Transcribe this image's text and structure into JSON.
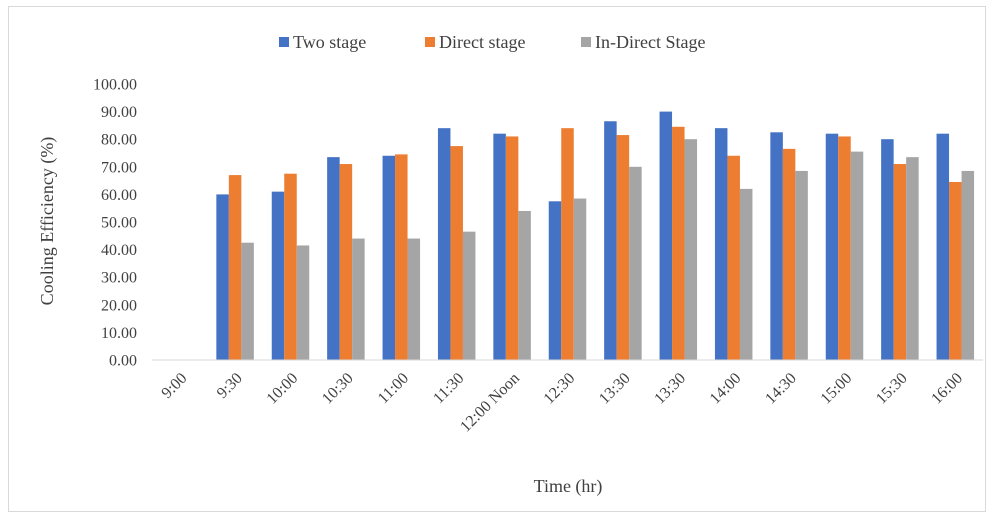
{
  "chart_data": {
    "type": "bar",
    "title": "",
    "xlabel": "Time (hr)",
    "ylabel": "Cooling Efficiency (%)",
    "ylim": [
      0,
      100
    ],
    "yticks": [
      "0.00",
      "10.00",
      "20.00",
      "30.00",
      "40.00",
      "50.00",
      "60.00",
      "70.00",
      "80.00",
      "90.00",
      "100.00"
    ],
    "grid": false,
    "legend_position": "top",
    "categories": [
      "9:00",
      "9:30",
      "10:00",
      "10:30",
      "11:00",
      "11:30",
      "12:00 Noon",
      "12:30",
      "13:30",
      "13:30",
      "14:00",
      "14:30",
      "15:00",
      "15:30",
      "16:00"
    ],
    "series": [
      {
        "name": "Two stage",
        "color": "#4472c4",
        "values": [
          0,
          60,
          61,
          73.5,
          74,
          84,
          82,
          57.5,
          86.5,
          90,
          84,
          82.5,
          82,
          80,
          82
        ]
      },
      {
        "name": "Direct stage",
        "color": "#ed7d31",
        "values": [
          0,
          67,
          67.5,
          71,
          74.5,
          77.5,
          81,
          84,
          81.5,
          84.5,
          74,
          76.5,
          81,
          71,
          64.5
        ]
      },
      {
        "name": "In-Direct Stage",
        "color": "#a5a5a5",
        "values": [
          0,
          42.5,
          41.5,
          44,
          44,
          46.5,
          54,
          58.5,
          70,
          80,
          62,
          68.5,
          75.5,
          73.5,
          68.5
        ]
      }
    ]
  }
}
